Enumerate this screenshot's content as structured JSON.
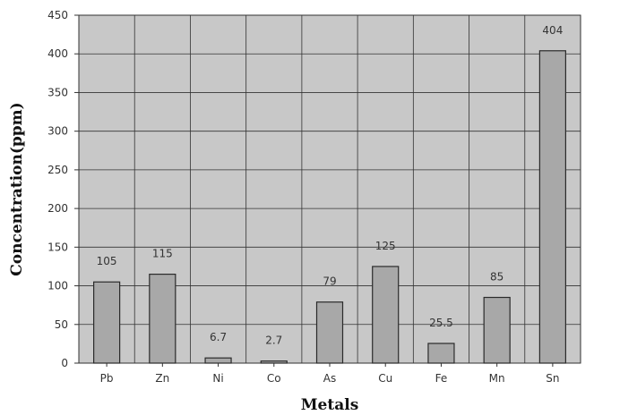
{
  "chart_data": {
    "type": "bar",
    "title": "",
    "xlabel": "Metals",
    "ylabel": "Concentration(ppm)",
    "categories": [
      "Pb",
      "Zn",
      "Ni",
      "Co",
      "As",
      "Cu",
      "Fe",
      "Mn",
      "Sn"
    ],
    "values": [
      105,
      115,
      6.7,
      2.7,
      79,
      125,
      25.5,
      85,
      404
    ],
    "data_labels": [
      "105",
      "115",
      "6.7",
      "2.7",
      "79",
      "125",
      "25.5",
      "85",
      "404"
    ],
    "ylim": [
      0,
      450
    ],
    "yticks": [
      0,
      50,
      100,
      150,
      200,
      250,
      300,
      350,
      400,
      450
    ],
    "grid": true,
    "legend": "none",
    "colors": {
      "plot_background": "#c8c8c8",
      "bar_fill": "#a8a8a8",
      "bar_stroke": "#2a2a2a",
      "grid": "#333333",
      "text": "#333333"
    }
  }
}
